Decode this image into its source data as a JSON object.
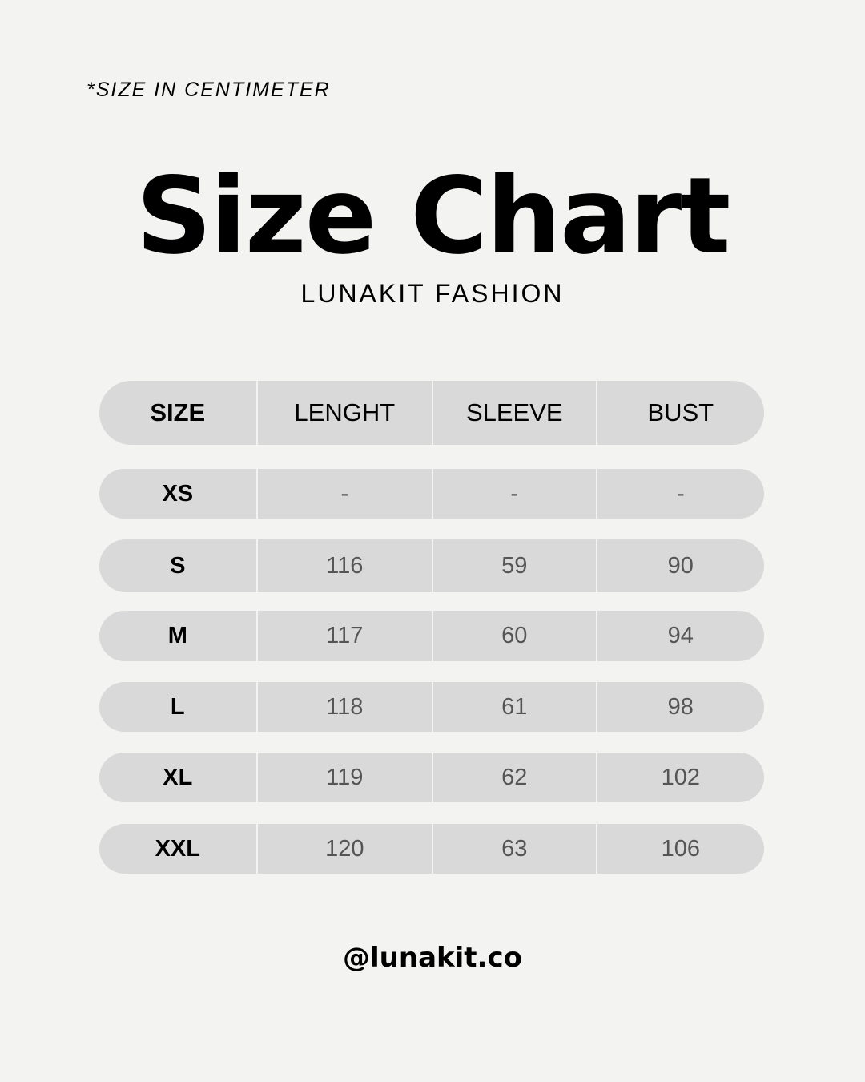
{
  "note": "*SIZE IN CENTIMETER",
  "title": "Size Chart",
  "subtitle": "LUNAKIT FASHION",
  "table": {
    "headers": [
      "SIZE",
      "LENGHT",
      "SLEEVE",
      "BUST"
    ],
    "rows": [
      [
        "XS",
        "-",
        "-",
        "-"
      ],
      [
        "S",
        "116",
        "59",
        "90"
      ],
      [
        "M",
        "117",
        "60",
        "94"
      ],
      [
        "L",
        "118",
        "61",
        "98"
      ],
      [
        "XL",
        "119",
        "62",
        "102"
      ],
      [
        "XXL",
        "120",
        "63",
        "106"
      ]
    ]
  },
  "handle": "@lunakit.co"
}
